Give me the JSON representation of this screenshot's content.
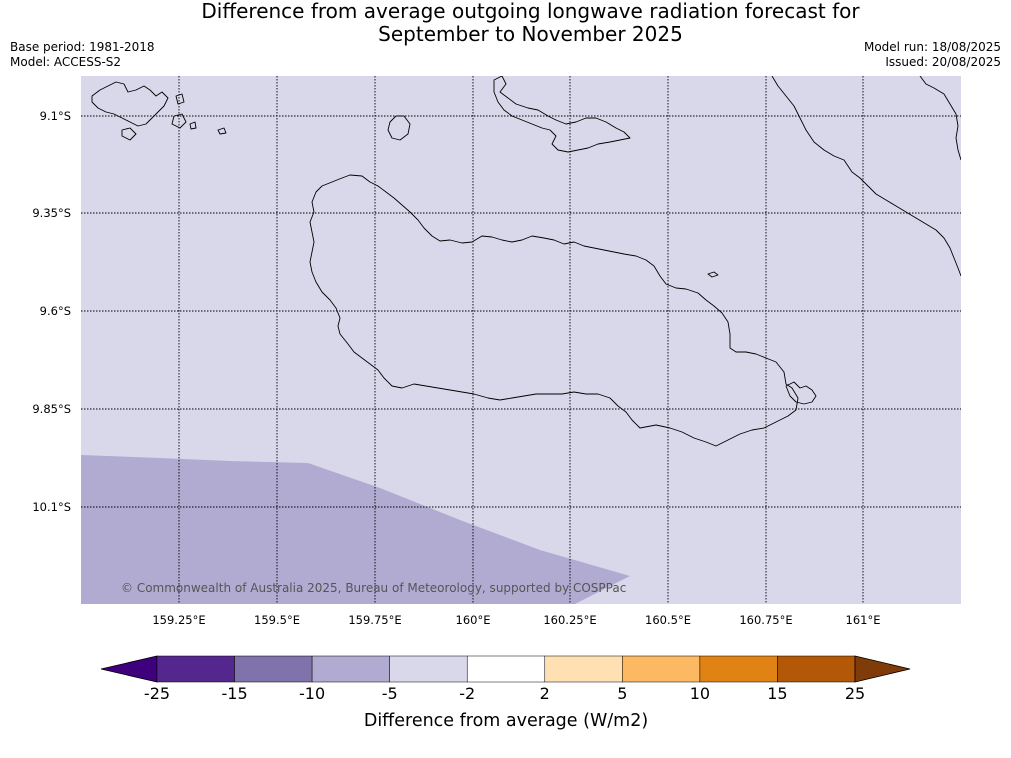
{
  "header": {
    "title_line1": "Difference from average outgoing longwave radiation forecast for",
    "title_line2": "September to November 2025",
    "base_period": "Base period: 1981-2018",
    "model": "Model: ACCESS-S2",
    "model_run": "Model run: 18/08/2025",
    "issued": "Issued: 20/08/2025"
  },
  "map": {
    "credit": "© Commonwealth of Australia 2025, Bureau of Meteorology, supported by COSPPac",
    "lat_labels": [
      "9.1°S",
      "9.35°S",
      "9.6°S",
      "9.85°S",
      "10.1°S"
    ],
    "lon_labels": [
      "159.25°E",
      "159.5°E",
      "159.75°E",
      "160°E",
      "160.25°E",
      "160.5°E",
      "160.75°E",
      "161°E"
    ],
    "background_color": "#d8d8ea",
    "anomaly_region_color": "#b1abd2"
  },
  "colorbar": {
    "title": "Difference from average (W/m2)",
    "tick_labels": [
      "-25",
      "-15",
      "-10",
      "-5",
      "-2",
      "2",
      "5",
      "10",
      "15",
      "25"
    ],
    "colors": [
      "#3f007d",
      "#54278f",
      "#8073ac",
      "#b1abd2",
      "#d8d8ea",
      "#ffffff",
      "#ffe0b3",
      "#fdb863",
      "#e08214",
      "#b35806",
      "#7f3b08"
    ]
  }
}
